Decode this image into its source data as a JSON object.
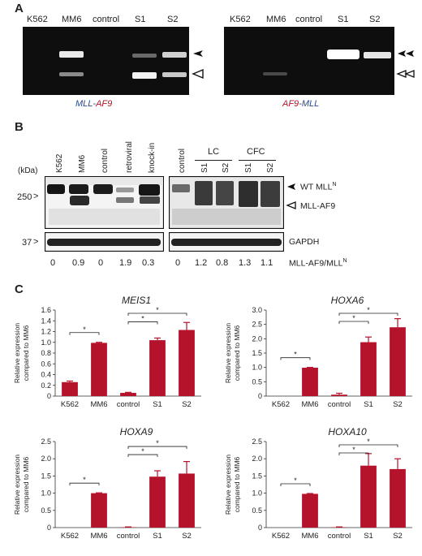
{
  "panelA": {
    "letter": "A",
    "gel_left": {
      "lanes": [
        "K562",
        "MM6",
        "control",
        "S1",
        "S2"
      ],
      "caption_part1": "MLL",
      "caption_sep": "-",
      "caption_part2": "AF9"
    },
    "gel_right": {
      "lanes": [
        "K562",
        "MM6",
        "control",
        "S1",
        "S2"
      ],
      "caption_part1": "AF9",
      "caption_sep": "-",
      "caption_part2": "MLL"
    }
  },
  "panelB": {
    "letter": "B",
    "unit_label": "(kDa)",
    "left_lanes": [
      "K562",
      "MM6",
      "control",
      "retroviral",
      "knock-in"
    ],
    "right_lanes": [
      "control",
      "S1",
      "S2",
      "S1",
      "S2"
    ],
    "group_lc": "LC",
    "group_cfc": "CFC",
    "marker_250": "250",
    "marker_37": "37",
    "band_wt": "WT MLL",
    "band_wt_sup": "N",
    "band_fusion": "MLL-AF9",
    "band_gapdh": "GAPDH",
    "ratios": [
      "0",
      "0.9",
      "0",
      "1.9",
      "0.3",
      "0",
      "1.2",
      "0.8",
      "1.3",
      "1.1"
    ],
    "ratio_label": "MLL-AF9/MLL",
    "ratio_label_sup": "N"
  },
  "panelC": {
    "letter": "C"
  },
  "chart_data": [
    {
      "type": "bar",
      "title": "MEIS1",
      "ylabel": "Relative expression compared to MM6",
      "categories": [
        "K562",
        "MM6",
        "control",
        "S1",
        "S2"
      ],
      "values": [
        0.26,
        0.99,
        0.06,
        1.04,
        1.23
      ],
      "errors": [
        0.02,
        0.01,
        0.01,
        0.04,
        0.14
      ],
      "ylim": [
        0,
        1.6
      ],
      "yticks": [
        "0",
        "0.2",
        "0.4",
        "0.6",
        "0.8",
        "1.0",
        "1.2",
        "1.4",
        "1.6"
      ],
      "significance": [
        "*",
        "*",
        "*"
      ],
      "color": "#b5122c"
    },
    {
      "type": "bar",
      "title": "HOXA6",
      "ylabel": "Relative expression compared to MM6",
      "categories": [
        "K562",
        "MM6",
        "control",
        "S1",
        "S2"
      ],
      "values": [
        0.0,
        0.99,
        0.05,
        1.88,
        2.4
      ],
      "errors": [
        0.0,
        0.01,
        0.05,
        0.18,
        0.3
      ],
      "ylim": [
        0,
        3.0
      ],
      "yticks": [
        "0",
        "0.5",
        "1.0",
        "1.5",
        "2.0",
        "2.5",
        "3.0"
      ],
      "significance": [
        "*",
        "*",
        "*"
      ],
      "color": "#b5122c"
    },
    {
      "type": "bar",
      "title": "HOXA9",
      "ylabel": "Relative expression compared to MM6",
      "categories": [
        "K562",
        "MM6",
        "control",
        "S1",
        "S2"
      ],
      "values": [
        0.0,
        1.0,
        0.01,
        1.48,
        1.57
      ],
      "errors": [
        0.0,
        0.01,
        0.01,
        0.17,
        0.35
      ],
      "ylim": [
        0,
        2.5
      ],
      "yticks": [
        "0",
        "0.5",
        "1.0",
        "1.5",
        "2.0",
        "2.5"
      ],
      "significance": [
        "*",
        "*",
        "*"
      ],
      "color": "#b5122c"
    },
    {
      "type": "bar",
      "title": "HOXA10",
      "ylabel": "Relative expression compared to MM6",
      "categories": [
        "K562",
        "MM6",
        "control",
        "S1",
        "S2"
      ],
      "values": [
        0.0,
        0.98,
        0.01,
        1.8,
        1.7
      ],
      "errors": [
        0.0,
        0.01,
        0.01,
        0.35,
        0.3
      ],
      "ylim": [
        0,
        2.5
      ],
      "yticks": [
        "0",
        "0.5",
        "1.0",
        "1.5",
        "2.0",
        "2.5"
      ],
      "significance": [
        "*",
        "*",
        "*"
      ],
      "color": "#b5122c"
    }
  ]
}
